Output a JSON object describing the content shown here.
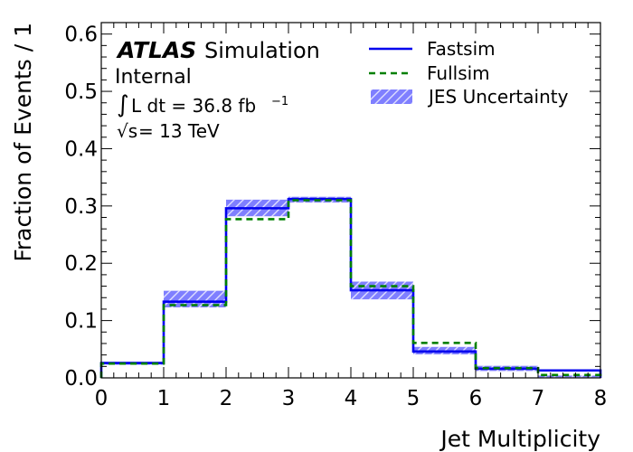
{
  "chart_data": {
    "type": "step-histogram",
    "xlabel": "Jet Multiplicity",
    "ylabel": "Fraction of Events / 1",
    "xlim": [
      0,
      8
    ],
    "ylim": [
      0,
      0.62
    ],
    "x_ticks": [
      "0",
      "1",
      "2",
      "3",
      "4",
      "5",
      "6",
      "7",
      "8"
    ],
    "y_ticks": [
      "0.0",
      "0.1",
      "0.2",
      "0.3",
      "0.4",
      "0.5",
      "0.6"
    ],
    "y_tick_values": [
      0.0,
      0.1,
      0.2,
      0.3,
      0.4,
      0.5,
      0.6
    ],
    "bin_edges": [
      0,
      1,
      2,
      3,
      4,
      5,
      6,
      7,
      8
    ],
    "series": [
      {
        "name": "Fastsim",
        "style": "solid",
        "color": "#0000ee",
        "values": [
          0.026,
          0.133,
          0.296,
          0.312,
          0.153,
          0.046,
          0.016,
          0.013
        ]
      },
      {
        "name": "Fullsim",
        "style": "dashed",
        "color": "#008000",
        "values": [
          0.025,
          0.127,
          0.277,
          0.31,
          0.16,
          0.061,
          0.017,
          0.005
        ]
      }
    ],
    "band": {
      "name": "JES Uncertainty",
      "color": "#7f7fff",
      "low": [
        0.023,
        0.123,
        0.282,
        0.306,
        0.137,
        0.041,
        0.012,
        0.001
      ],
      "high": [
        0.028,
        0.152,
        0.311,
        0.316,
        0.168,
        0.054,
        0.021,
        0.004
      ]
    },
    "annotations": {
      "atlas": "ATLAS",
      "simulation": "Simulation",
      "internal": "Internal",
      "lumi_integral": "∫",
      "lumi": "L dt = 36.8 fb",
      "lumi_exp": "−1",
      "energy_root": "√s",
      "energy": " = 13 TeV"
    },
    "legend_placement": "top-right",
    "grid": false
  }
}
